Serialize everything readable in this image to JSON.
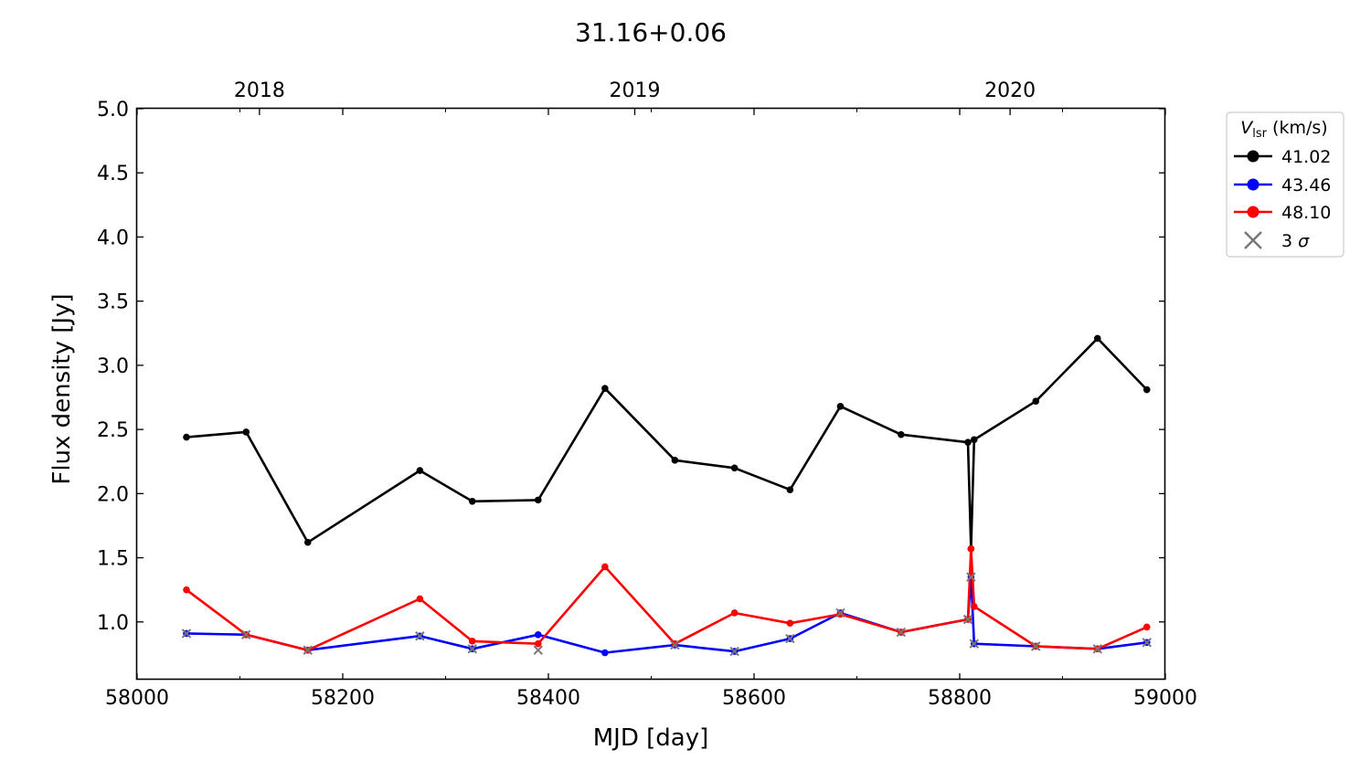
{
  "chart_data": {
    "type": "line",
    "title": "31.16+0.06",
    "xlabel": "MJD [day]",
    "ylabel": "Flux density [Jy]",
    "xlim": [
      58000,
      59000
    ],
    "ylim": [
      0.55,
      5.0
    ],
    "xticks": [
      58000,
      58200,
      58400,
      58600,
      58800,
      59000
    ],
    "yticks": [
      1.0,
      1.5,
      2.0,
      2.5,
      3.0,
      3.5,
      4.0,
      4.5,
      5.0
    ],
    "top_axis": {
      "ticks": [
        {
          "label": "2018",
          "mjd": 58119
        },
        {
          "label": "2019",
          "mjd": 58484
        },
        {
          "label": "2020",
          "mjd": 58849
        }
      ]
    },
    "legend": {
      "title_symbol": "V",
      "title_subscript": "lsr",
      "title_unit": " (km/s)",
      "placement": "outside-right"
    },
    "series": [
      {
        "name": "41.02",
        "color": "#000000",
        "x": [
          58048,
          58106,
          58166,
          58275,
          58326,
          58390,
          58455,
          58523,
          58581,
          58635,
          58684,
          58743,
          58808,
          58811,
          58814,
          58874,
          58934,
          58982
        ],
        "y": [
          2.44,
          2.48,
          1.62,
          2.18,
          1.94,
          1.95,
          2.82,
          2.26,
          2.2,
          2.03,
          2.68,
          2.46,
          2.4,
          1.57,
          2.42,
          2.72,
          3.21,
          2.81
        ]
      },
      {
        "name": "43.46",
        "color": "#0000ff",
        "x": [
          58048,
          58106,
          58166,
          58275,
          58326,
          58390,
          58455,
          58523,
          58581,
          58635,
          58684,
          58743,
          58808,
          58811,
          58814,
          58874,
          58934,
          58982
        ],
        "y": [
          0.91,
          0.9,
          0.78,
          0.89,
          0.79,
          0.9,
          0.76,
          0.82,
          0.77,
          0.87,
          1.07,
          0.92,
          1.02,
          1.35,
          0.83,
          0.81,
          0.79,
          0.84
        ]
      },
      {
        "name": "48.10",
        "color": "#ff0000",
        "x": [
          58048,
          58106,
          58166,
          58275,
          58326,
          58390,
          58455,
          58523,
          58581,
          58635,
          58684,
          58743,
          58808,
          58811,
          58814,
          58874,
          58934,
          58982
        ],
        "y": [
          1.25,
          0.9,
          0.78,
          1.18,
          0.85,
          0.83,
          1.43,
          0.83,
          1.07,
          0.99,
          1.06,
          0.92,
          1.02,
          1.57,
          1.12,
          0.81,
          0.79,
          0.96
        ]
      }
    ],
    "sigma3": {
      "name": "3 σ",
      "name_text": "3 ",
      "name_symbol": "σ",
      "color": "#777777",
      "x": [
        58048,
        58106,
        58166,
        58275,
        58326,
        58390,
        58523,
        58581,
        58635,
        58684,
        58743,
        58808,
        58811,
        58814,
        58874,
        58934,
        58982
      ],
      "y": [
        0.91,
        0.9,
        0.78,
        0.89,
        0.79,
        0.78,
        0.82,
        0.77,
        0.87,
        1.07,
        0.92,
        1.02,
        1.35,
        0.83,
        0.81,
        0.79,
        0.84
      ]
    }
  }
}
